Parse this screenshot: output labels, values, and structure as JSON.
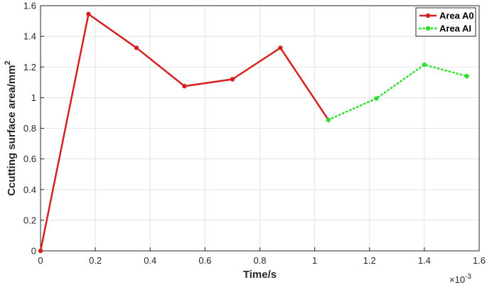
{
  "chart_data": {
    "type": "line",
    "xlabel": "Time/s",
    "ylabel": "Ccutting surface area/mm",
    "ylabel_superscript": "2",
    "x_exponent_base": "×10",
    "x_exponent_power": "-3",
    "xlim": [
      0,
      1.6
    ],
    "ylim": [
      0,
      1.6
    ],
    "x_ticks": [
      0,
      0.2,
      0.4,
      0.6,
      0.8,
      1,
      1.2,
      1.4,
      1.6
    ],
    "x_tick_labels": [
      "0",
      "0.2",
      "0.4",
      "0.6",
      "0.8",
      "1",
      "1.2",
      "1.4",
      "1.6"
    ],
    "y_ticks": [
      0,
      0.2,
      0.4,
      0.6,
      0.8,
      1,
      1.2,
      1.4,
      1.6
    ],
    "y_tick_labels": [
      "0",
      "0.2",
      "0.4",
      "0.6",
      "0.8",
      "1",
      "1.2",
      "1.4",
      "1.6"
    ],
    "grid": true,
    "legend_position": "top-right",
    "series": [
      {
        "name": "Area A0",
        "color": "#d62020",
        "style": "solid",
        "x": [
          0,
          0.175,
          0.35,
          0.525,
          0.7,
          0.875,
          1.05
        ],
        "values": [
          0,
          1.545,
          1.325,
          1.075,
          1.12,
          1.325,
          0.855
        ]
      },
      {
        "name": "Area AI",
        "color": "#2fe02f",
        "style": "dotted",
        "x": [
          1.05,
          1.225,
          1.4,
          1.555
        ],
        "values": [
          0.855,
          0.995,
          1.215,
          1.14
        ]
      }
    ]
  }
}
